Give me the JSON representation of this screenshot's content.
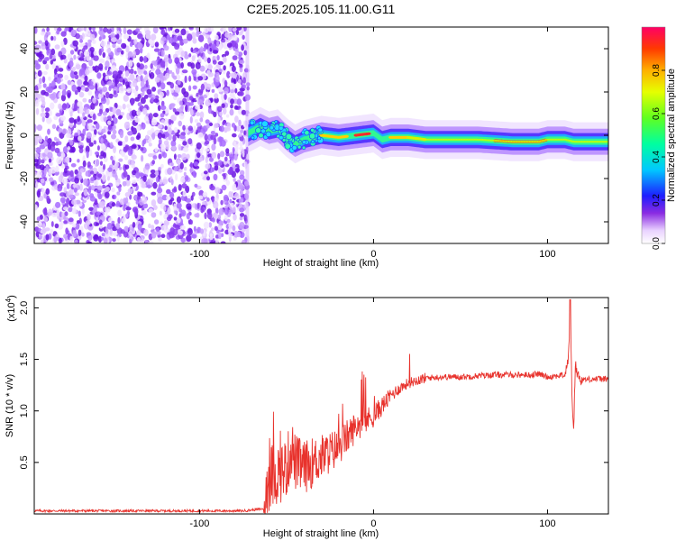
{
  "chart_data": [
    {
      "type": "heatmap",
      "title": "C2E5.2025.105.11.00.G11",
      "xlabel": "Height of straight line (km)",
      "ylabel": "Frequency (Hz)",
      "xlim": [
        -195,
        135
      ],
      "ylim": [
        -50,
        50
      ],
      "xticks": [
        -100,
        0,
        100
      ],
      "xtick_labels": [
        "-100",
        "0",
        "100"
      ],
      "yticks": [
        -40,
        -20,
        0,
        20,
        40
      ],
      "ytick_labels": [
        "-40",
        "-20",
        "0",
        "20",
        "40"
      ],
      "colorbar": {
        "label": "Normalized spectral amplitude",
        "range": [
          0,
          1
        ],
        "ticks": [
          0.0,
          0.2,
          0.4,
          0.6,
          0.8
        ],
        "tick_labels": [
          "0.0",
          "0.2",
          "0.4",
          "0.6",
          "0.8"
        ]
      },
      "ridge": {
        "x": [
          -72,
          -65,
          -60,
          -55,
          -50,
          -45,
          -40,
          -30,
          -20,
          -10,
          0,
          5,
          10,
          20,
          30,
          40,
          60,
          80,
          95,
          100,
          110,
          115,
          135
        ],
        "y": [
          1,
          4,
          2,
          3,
          -1,
          -4,
          -2,
          0,
          -1,
          0,
          1,
          -2,
          -1,
          -1,
          -2,
          -2,
          -2,
          -3,
          -3,
          -2,
          -2,
          -3,
          -3
        ]
      }
    },
    {
      "type": "line",
      "xlabel": "Height of straight line (km)",
      "ylabel": "SNR (10 * v/v)",
      "y_multiplier": "(x10",
      "y_multiplier_exp": "4",
      "y_multiplier_close": ")",
      "xlim": [
        -195,
        135
      ],
      "ylim": [
        0,
        2.1
      ],
      "xticks": [
        -100,
        0,
        100
      ],
      "xtick_labels": [
        "-100",
        "0",
        "100"
      ],
      "yticks": [
        0.5,
        1.0,
        1.5,
        2.0
      ],
      "ytick_labels": [
        "0.5",
        "1.0",
        "1.5",
        "2.0"
      ],
      "series": [
        {
          "color": "#e8322c",
          "x": [
            -195,
            -160,
            -130,
            -100,
            -75,
            -63,
            -62,
            -60,
            -55,
            -50,
            -47,
            -45,
            -40,
            -35,
            -30,
            -25,
            -20,
            -15,
            -10,
            -5,
            0,
            5,
            10,
            15,
            20,
            25,
            30,
            40,
            50,
            60,
            70,
            80,
            90,
            95,
            100,
            105,
            110,
            112,
            113,
            114,
            115,
            116,
            118,
            120,
            125,
            130,
            135
          ],
          "y": [
            0.03,
            0.03,
            0.03,
            0.03,
            0.03,
            0.05,
            0.2,
            0.35,
            0.4,
            0.45,
            0.65,
            0.5,
            0.45,
            0.5,
            0.55,
            0.6,
            0.65,
            0.75,
            0.85,
            0.9,
            0.95,
            1.05,
            1.15,
            1.22,
            1.27,
            1.3,
            1.32,
            1.33,
            1.33,
            1.34,
            1.35,
            1.35,
            1.35,
            1.36,
            1.33,
            1.34,
            1.35,
            1.5,
            2.0,
            1.2,
            0.8,
            1.45,
            1.32,
            1.3,
            1.31,
            1.31,
            1.31
          ]
        }
      ]
    }
  ]
}
